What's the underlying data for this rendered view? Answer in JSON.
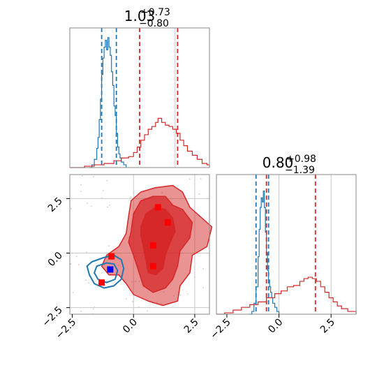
{
  "colors": {
    "posterior": "#d62728",
    "prior": "#1f77b4",
    "marker_red": "#ff0000",
    "marker_blue": "#0000ff",
    "grid": "#c8c8c8",
    "spine": "#888888"
  },
  "chart_data": [
    {
      "type": "step-histogram",
      "panel": "top-left",
      "title": {
        "value": "1.03",
        "plus": "+0.73",
        "minus": "−0.80"
      },
      "xlim": [
        -2.6,
        3.1
      ],
      "x_gridlines": [
        1.7
      ],
      "series": [
        {
          "color_key": "prior",
          "quantile_lines": [
            -1.3,
            -0.7
          ],
          "points": [
            [
              -1.8,
              0.0
            ],
            [
              -1.7,
              0.02
            ],
            [
              -1.6,
              0.06
            ],
            [
              -1.5,
              0.14
            ],
            [
              -1.45,
              0.22
            ],
            [
              -1.4,
              0.35
            ],
            [
              -1.35,
              0.5
            ],
            [
              -1.3,
              0.68
            ],
            [
              -1.25,
              0.8
            ],
            [
              -1.2,
              0.88
            ],
            [
              -1.15,
              0.93
            ],
            [
              -1.1,
              0.86
            ],
            [
              -1.05,
              0.95
            ],
            [
              -1.0,
              0.88
            ],
            [
              -0.95,
              0.82
            ],
            [
              -0.9,
              0.7
            ],
            [
              -0.85,
              0.6
            ],
            [
              -0.8,
              0.45
            ],
            [
              -0.75,
              0.38
            ],
            [
              -0.7,
              0.25
            ],
            [
              -0.65,
              0.15
            ],
            [
              -0.6,
              0.1
            ],
            [
              -0.55,
              0.07
            ],
            [
              -0.5,
              0.04
            ],
            [
              -0.4,
              0.02
            ],
            [
              -0.3,
              0.0
            ]
          ]
        },
        {
          "color_key": "posterior",
          "quantile_lines": [
            0.25,
            1.8
          ],
          "points": [
            [
              -2.6,
              0.0
            ],
            [
              -2.0,
              0.01
            ],
            [
              -1.6,
              0.02
            ],
            [
              -1.2,
              0.03
            ],
            [
              -0.8,
              0.05
            ],
            [
              -0.5,
              0.07
            ],
            [
              -0.2,
              0.08
            ],
            [
              0.0,
              0.11
            ],
            [
              0.15,
              0.15
            ],
            [
              0.3,
              0.2
            ],
            [
              0.45,
              0.24
            ],
            [
              0.6,
              0.28
            ],
            [
              0.75,
              0.3
            ],
            [
              0.9,
              0.33
            ],
            [
              1.0,
              0.36
            ],
            [
              1.15,
              0.33
            ],
            [
              1.3,
              0.31
            ],
            [
              1.45,
              0.3
            ],
            [
              1.6,
              0.28
            ],
            [
              1.75,
              0.25
            ],
            [
              1.9,
              0.2
            ],
            [
              2.05,
              0.16
            ],
            [
              2.2,
              0.12
            ],
            [
              2.4,
              0.09
            ],
            [
              2.6,
              0.06
            ],
            [
              2.8,
              0.03
            ],
            [
              3.0,
              0.02
            ],
            [
              3.1,
              0.0
            ]
          ]
        }
      ]
    },
    {
      "type": "step-histogram",
      "panel": "bottom-right",
      "title": {
        "value": "0.80",
        "plus": "+0.98",
        "minus": "−1.39"
      },
      "xlim": [
        -3.0,
        3.7
      ],
      "xticks": [
        -2.5,
        0.0,
        2.5
      ],
      "xtick_labels": [
        "−2.5",
        "0.0",
        "2.5"
      ],
      "x_gridlines": [
        0.0,
        2.5
      ],
      "series": [
        {
          "color_key": "prior",
          "quantile_lines": [
            -1.1,
            -0.5
          ],
          "points": [
            [
              -1.4,
              0.0
            ],
            [
              -1.3,
              0.02
            ],
            [
              -1.2,
              0.08
            ],
            [
              -1.1,
              0.2
            ],
            [
              -1.0,
              0.42
            ],
            [
              -0.95,
              0.62
            ],
            [
              -0.9,
              0.78
            ],
            [
              -0.85,
              0.85
            ],
            [
              -0.8,
              0.82
            ],
            [
              -0.75,
              0.9
            ],
            [
              -0.7,
              0.78
            ],
            [
              -0.65,
              0.6
            ],
            [
              -0.6,
              0.45
            ],
            [
              -0.55,
              0.32
            ],
            [
              -0.5,
              0.25
            ],
            [
              -0.45,
              0.2
            ],
            [
              -0.4,
              0.16
            ],
            [
              -0.35,
              0.12
            ],
            [
              -0.3,
              0.08
            ],
            [
              -0.2,
              0.05
            ],
            [
              -0.1,
              0.02
            ],
            [
              0.0,
              0.0
            ]
          ]
        },
        {
          "color_key": "posterior",
          "quantile_lines": [
            -0.6,
            1.75
          ],
          "points": [
            [
              -3.0,
              0.0
            ],
            [
              -2.6,
              0.01
            ],
            [
              -2.2,
              0.03
            ],
            [
              -1.8,
              0.05
            ],
            [
              -1.4,
              0.07
            ],
            [
              -1.0,
              0.09
            ],
            [
              -0.6,
              0.12
            ],
            [
              -0.2,
              0.15
            ],
            [
              0.1,
              0.17
            ],
            [
              0.4,
              0.2
            ],
            [
              0.7,
              0.21
            ],
            [
              1.0,
              0.24
            ],
            [
              1.2,
              0.26
            ],
            [
              1.4,
              0.27
            ],
            [
              1.6,
              0.26
            ],
            [
              1.8,
              0.24
            ],
            [
              2.0,
              0.2
            ],
            [
              2.2,
              0.16
            ],
            [
              2.4,
              0.12
            ],
            [
              2.6,
              0.09
            ],
            [
              2.8,
              0.06
            ],
            [
              3.0,
              0.04
            ],
            [
              3.3,
              0.02
            ],
            [
              3.7,
              0.0
            ]
          ]
        }
      ]
    },
    {
      "type": "contour",
      "panel": "bottom-left",
      "xlim": [
        -2.6,
        3.1
      ],
      "ylim": [
        -2.8,
        3.6
      ],
      "xticks": [
        -2.5,
        0.0,
        2.5
      ],
      "xtick_labels": [
        "−2.5",
        "0.0",
        "2.5"
      ],
      "yticks": [
        -2.5,
        0.0,
        2.5
      ],
      "ytick_labels": [
        "−2.5",
        "0.0",
        "2.5"
      ],
      "x_gridlines": [
        0.0,
        2.5
      ],
      "y_gridlines": [
        2.5,
        0.0,
        -2.5
      ],
      "posterior_levels": [
        {
          "alpha": 0.5,
          "points": [
            [
              -1.0,
              -1.0
            ],
            [
              -1.3,
              -0.6
            ],
            [
              -1.1,
              -0.1
            ],
            [
              -0.6,
              0.3
            ],
            [
              -0.3,
              0.9
            ],
            [
              -0.2,
              1.7
            ],
            [
              -0.1,
              2.4
            ],
            [
              0.3,
              2.8
            ],
            [
              0.9,
              3.0
            ],
            [
              1.6,
              3.1
            ],
            [
              2.0,
              2.8
            ],
            [
              2.3,
              2.1
            ],
            [
              2.8,
              1.6
            ],
            [
              3.2,
              1.2
            ],
            [
              3.0,
              0.3
            ],
            [
              2.4,
              -0.1
            ],
            [
              2.3,
              -0.9
            ],
            [
              1.9,
              -1.5
            ],
            [
              1.8,
              -2.2
            ],
            [
              1.2,
              -2.4
            ],
            [
              0.6,
              -2.2
            ],
            [
              0.0,
              -1.9
            ],
            [
              -0.3,
              -1.4
            ],
            [
              -0.6,
              -1.0
            ]
          ]
        },
        {
          "alpha": 0.75,
          "points": [
            [
              -0.1,
              1.0
            ],
            [
              0.0,
              1.8
            ],
            [
              0.3,
              2.4
            ],
            [
              0.8,
              2.6
            ],
            [
              1.3,
              2.6
            ],
            [
              1.6,
              2.2
            ],
            [
              2.0,
              2.0
            ],
            [
              2.4,
              1.4
            ],
            [
              2.3,
              0.7
            ],
            [
              1.9,
              0.1
            ],
            [
              1.8,
              -0.6
            ],
            [
              1.6,
              -1.2
            ],
            [
              1.3,
              -1.6
            ],
            [
              0.8,
              -1.8
            ],
            [
              0.4,
              -1.5
            ],
            [
              0.2,
              -0.8
            ],
            [
              0.0,
              -0.1
            ],
            [
              -0.2,
              0.5
            ]
          ]
        },
        {
          "alpha": 0.95,
          "points": [
            [
              0.3,
              1.2
            ],
            [
              0.5,
              1.8
            ],
            [
              0.9,
              2.1
            ],
            [
              1.3,
              2.0
            ],
            [
              1.6,
              1.6
            ],
            [
              1.7,
              1.0
            ],
            [
              1.5,
              0.5
            ],
            [
              1.3,
              -0.1
            ],
            [
              1.2,
              -0.7
            ],
            [
              0.9,
              -1.0
            ],
            [
              0.6,
              -0.9
            ],
            [
              0.5,
              -0.3
            ],
            [
              0.4,
              0.3
            ],
            [
              0.3,
              0.8
            ]
          ]
        }
      ],
      "prior_contours": [
        [
          [
            -1.7,
            -0.4
          ],
          [
            -1.2,
            -0.2
          ],
          [
            -0.8,
            -0.1
          ],
          [
            -0.5,
            -0.3
          ],
          [
            -0.4,
            -0.7
          ],
          [
            -0.5,
            -1.2
          ],
          [
            -0.8,
            -1.5
          ],
          [
            -1.2,
            -1.6
          ],
          [
            -1.6,
            -1.4
          ],
          [
            -1.8,
            -1.0
          ],
          [
            -1.9,
            -0.6
          ]
        ],
        [
          [
            -1.5,
            -0.6
          ],
          [
            -1.1,
            -0.45
          ],
          [
            -0.8,
            -0.5
          ],
          [
            -0.65,
            -0.8
          ],
          [
            -0.75,
            -1.2
          ],
          [
            -1.1,
            -1.35
          ],
          [
            -1.45,
            -1.2
          ],
          [
            -1.6,
            -0.9
          ]
        ]
      ],
      "markers": [
        {
          "x": 1.0,
          "y": 2.1,
          "color_key": "marker_red"
        },
        {
          "x": 1.4,
          "y": 1.4,
          "color_key": "marker_red"
        },
        {
          "x": 0.8,
          "y": 0.35,
          "color_key": "marker_red"
        },
        {
          "x": 0.8,
          "y": -0.6,
          "color_key": "marker_red"
        },
        {
          "x": -0.9,
          "y": -0.15,
          "color_key": "marker_red"
        },
        {
          "x": -1.3,
          "y": -1.35,
          "color_key": "marker_red"
        },
        {
          "x": -0.95,
          "y": -0.75,
          "color_key": "marker_blue"
        }
      ]
    }
  ]
}
